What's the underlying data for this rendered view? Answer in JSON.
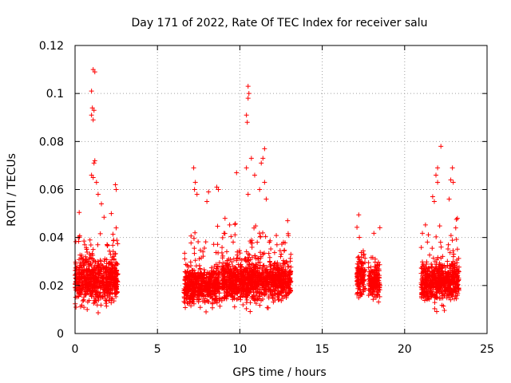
{
  "chart_data": {
    "type": "scatter",
    "title": "Day 171 of 2022, Rate Of TEC Index for receiver salu",
    "xlabel": "GPS time / hours",
    "ylabel": "ROTI / TECUs",
    "xlim": [
      0,
      25
    ],
    "ylim": [
      0,
      0.12
    ],
    "xticks": [
      0,
      5,
      10,
      15,
      20,
      25
    ],
    "xtick_labels": [
      "0",
      "5",
      "10",
      "15",
      "20",
      "25"
    ],
    "yticks": [
      0,
      0.02,
      0.04,
      0.06,
      0.08,
      0.1,
      0.12
    ],
    "ytick_labels": [
      "0",
      "0.02",
      "0.04",
      "0.06",
      "0.08",
      "0.1",
      "0.12"
    ],
    "grid": true,
    "marker": "plus",
    "color": "#ff0000",
    "clusters": [
      {
        "x_range": [
          0.0,
          2.6
        ],
        "y_mean": 0.022,
        "y_spread": 0.01,
        "y_min": 0.006
      },
      {
        "x_range": [
          6.6,
          8.8
        ],
        "y_mean": 0.02,
        "y_spread": 0.008,
        "y_min": 0.004
      },
      {
        "x_range": [
          8.9,
          13.1
        ],
        "y_mean": 0.022,
        "y_spread": 0.009,
        "y_min": 0.005
      },
      {
        "x_range": [
          17.1,
          17.6
        ],
        "y_mean": 0.024,
        "y_spread": 0.008,
        "y_min": 0.01
      },
      {
        "x_range": [
          17.8,
          18.5
        ],
        "y_mean": 0.022,
        "y_spread": 0.008,
        "y_min": 0.009
      },
      {
        "x_range": [
          21.0,
          23.3
        ],
        "y_mean": 0.022,
        "y_spread": 0.009,
        "y_min": 0.007
      }
    ],
    "outliers": [
      {
        "x": 1.1,
        "y": 0.11
      },
      {
        "x": 1.2,
        "y": 0.109
      },
      {
        "x": 1.0,
        "y": 0.101
      },
      {
        "x": 1.05,
        "y": 0.094
      },
      {
        "x": 1.15,
        "y": 0.093
      },
      {
        "x": 1.0,
        "y": 0.091
      },
      {
        "x": 1.1,
        "y": 0.089
      },
      {
        "x": 1.2,
        "y": 0.072
      },
      {
        "x": 1.15,
        "y": 0.071
      },
      {
        "x": 1.0,
        "y": 0.066
      },
      {
        "x": 1.1,
        "y": 0.065
      },
      {
        "x": 1.3,
        "y": 0.063
      },
      {
        "x": 2.45,
        "y": 0.062
      },
      {
        "x": 2.5,
        "y": 0.06
      },
      {
        "x": 1.4,
        "y": 0.058
      },
      {
        "x": 1.6,
        "y": 0.054
      },
      {
        "x": 2.2,
        "y": 0.05
      },
      {
        "x": 0.2,
        "y": 0.04
      },
      {
        "x": 7.2,
        "y": 0.069
      },
      {
        "x": 7.3,
        "y": 0.063
      },
      {
        "x": 7.25,
        "y": 0.06
      },
      {
        "x": 8.6,
        "y": 0.061
      },
      {
        "x": 8.1,
        "y": 0.059
      },
      {
        "x": 8.0,
        "y": 0.055
      },
      {
        "x": 8.7,
        "y": 0.06
      },
      {
        "x": 7.4,
        "y": 0.058
      },
      {
        "x": 10.5,
        "y": 0.103
      },
      {
        "x": 10.55,
        "y": 0.1
      },
      {
        "x": 10.5,
        "y": 0.098
      },
      {
        "x": 10.4,
        "y": 0.091
      },
      {
        "x": 10.45,
        "y": 0.088
      },
      {
        "x": 11.5,
        "y": 0.077
      },
      {
        "x": 11.4,
        "y": 0.073
      },
      {
        "x": 10.7,
        "y": 0.073
      },
      {
        "x": 11.3,
        "y": 0.071
      },
      {
        "x": 10.4,
        "y": 0.069
      },
      {
        "x": 9.8,
        "y": 0.067
      },
      {
        "x": 10.9,
        "y": 0.066
      },
      {
        "x": 11.5,
        "y": 0.063
      },
      {
        "x": 11.2,
        "y": 0.06
      },
      {
        "x": 10.5,
        "y": 0.058
      },
      {
        "x": 11.6,
        "y": 0.056
      },
      {
        "x": 12.9,
        "y": 0.047
      },
      {
        "x": 9.1,
        "y": 0.048
      },
      {
        "x": 22.2,
        "y": 0.078
      },
      {
        "x": 22.0,
        "y": 0.069
      },
      {
        "x": 22.9,
        "y": 0.069
      },
      {
        "x": 22.8,
        "y": 0.064
      },
      {
        "x": 22.95,
        "y": 0.063
      },
      {
        "x": 21.9,
        "y": 0.066
      },
      {
        "x": 22.0,
        "y": 0.063
      },
      {
        "x": 21.7,
        "y": 0.057
      },
      {
        "x": 21.8,
        "y": 0.055
      },
      {
        "x": 22.7,
        "y": 0.056
      },
      {
        "x": 23.2,
        "y": 0.048
      },
      {
        "x": 23.1,
        "y": 0.044
      }
    ]
  }
}
